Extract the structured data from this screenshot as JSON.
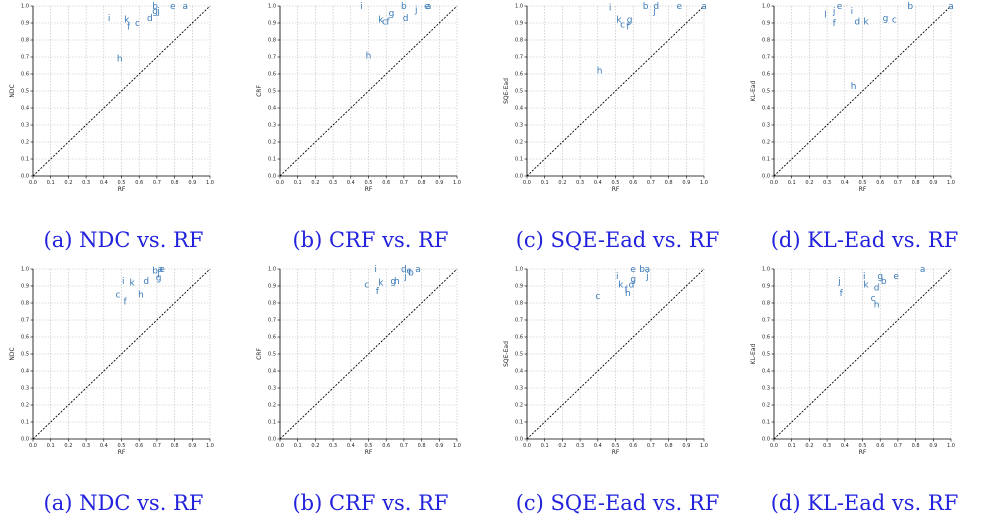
{
  "chart_data": [
    {
      "type": "scatter",
      "caption": "(a) NDC vs. RF",
      "xlabel": "RF",
      "ylabel": "NDC",
      "xlim": [
        0,
        1
      ],
      "ylim": [
        0,
        1
      ],
      "grid": true,
      "diagonal": true,
      "points": [
        {
          "label": "a",
          "x": 0.86,
          "y": 1.0
        },
        {
          "label": "e",
          "x": 0.79,
          "y": 1.0
        },
        {
          "label": "b",
          "x": 0.69,
          "y": 1.0
        },
        {
          "label": "j",
          "x": 0.71,
          "y": 0.97
        },
        {
          "label": "g",
          "x": 0.69,
          "y": 0.97
        },
        {
          "label": "d",
          "x": 0.66,
          "y": 0.93
        },
        {
          "label": "i",
          "x": 0.43,
          "y": 0.93
        },
        {
          "label": "k",
          "x": 0.53,
          "y": 0.92
        },
        {
          "label": "c",
          "x": 0.59,
          "y": 0.9
        },
        {
          "label": "f",
          "x": 0.54,
          "y": 0.88
        },
        {
          "label": "h",
          "x": 0.49,
          "y": 0.69
        }
      ]
    },
    {
      "type": "scatter",
      "caption": "(b) CRF vs. RF",
      "xlabel": "RF",
      "ylabel": "CRF",
      "xlim": [
        0,
        1
      ],
      "ylim": [
        0,
        1
      ],
      "grid": true,
      "diagonal": true,
      "points": [
        {
          "label": "e",
          "x": 0.83,
          "y": 1.0
        },
        {
          "label": "a",
          "x": 0.84,
          "y": 1.0
        },
        {
          "label": "b",
          "x": 0.7,
          "y": 1.0
        },
        {
          "label": "j",
          "x": 0.77,
          "y": 0.98
        },
        {
          "label": "i",
          "x": 0.46,
          "y": 1.0
        },
        {
          "label": "g",
          "x": 0.63,
          "y": 0.96
        },
        {
          "label": "d",
          "x": 0.71,
          "y": 0.93
        },
        {
          "label": "k",
          "x": 0.57,
          "y": 0.92
        },
        {
          "label": "c",
          "x": 0.59,
          "y": 0.91
        },
        {
          "label": "f",
          "x": 0.61,
          "y": 0.91
        },
        {
          "label": "h",
          "x": 0.5,
          "y": 0.71
        }
      ]
    },
    {
      "type": "scatter",
      "caption": "(c) SQE-Ead vs. RF",
      "xlabel": "RF",
      "ylabel": "SQE-Ead",
      "xlim": [
        0,
        1
      ],
      "ylim": [
        0,
        1
      ],
      "grid": true,
      "diagonal": true,
      "points": [
        {
          "label": "a",
          "x": 1.0,
          "y": 1.0
        },
        {
          "label": "e",
          "x": 0.86,
          "y": 1.0
        },
        {
          "label": "b",
          "x": 0.67,
          "y": 1.0
        },
        {
          "label": "d",
          "x": 0.73,
          "y": 1.0
        },
        {
          "label": "i",
          "x": 0.47,
          "y": 0.99
        },
        {
          "label": "j",
          "x": 0.72,
          "y": 0.97
        },
        {
          "label": "k",
          "x": 0.52,
          "y": 0.92
        },
        {
          "label": "g",
          "x": 0.58,
          "y": 0.92
        },
        {
          "label": "c",
          "x": 0.54,
          "y": 0.89
        },
        {
          "label": "f",
          "x": 0.57,
          "y": 0.88
        },
        {
          "label": "h",
          "x": 0.41,
          "y": 0.62
        }
      ]
    },
    {
      "type": "scatter",
      "caption": "(d) KL-Ead vs. RF",
      "xlabel": "RF",
      "ylabel": "KL-Ead",
      "xlim": [
        0,
        1
      ],
      "ylim": [
        0,
        1
      ],
      "grid": true,
      "diagonal": true,
      "points": [
        {
          "label": "a",
          "x": 1.0,
          "y": 1.0
        },
        {
          "label": "b",
          "x": 0.77,
          "y": 1.0
        },
        {
          "label": "e",
          "x": 0.37,
          "y": 1.0
        },
        {
          "label": "j",
          "x": 0.34,
          "y": 0.97
        },
        {
          "label": "i",
          "x": 0.44,
          "y": 0.97
        },
        {
          "label": "l",
          "x": 0.29,
          "y": 0.95
        },
        {
          "label": "g",
          "x": 0.63,
          "y": 0.93
        },
        {
          "label": "c",
          "x": 0.68,
          "y": 0.92
        },
        {
          "label": "d",
          "x": 0.47,
          "y": 0.91
        },
        {
          "label": "k",
          "x": 0.52,
          "y": 0.91
        },
        {
          "label": "f",
          "x": 0.34,
          "y": 0.9
        },
        {
          "label": "h",
          "x": 0.45,
          "y": 0.53
        }
      ]
    },
    {
      "type": "scatter",
      "caption": "(a) NDC vs. RF",
      "xlabel": "RF",
      "ylabel": "NDC",
      "xlim": [
        0,
        1
      ],
      "ylim": [
        0,
        1
      ],
      "grid": true,
      "diagonal": true,
      "points": [
        {
          "label": "a",
          "x": 0.72,
          "y": 1.0
        },
        {
          "label": "e",
          "x": 0.73,
          "y": 1.0
        },
        {
          "label": "b",
          "x": 0.69,
          "y": 0.99
        },
        {
          "label": "j",
          "x": 0.71,
          "y": 0.98
        },
        {
          "label": "g",
          "x": 0.71,
          "y": 0.95
        },
        {
          "label": "d",
          "x": 0.64,
          "y": 0.93
        },
        {
          "label": "i",
          "x": 0.51,
          "y": 0.93
        },
        {
          "label": "k",
          "x": 0.56,
          "y": 0.92
        },
        {
          "label": "c",
          "x": 0.48,
          "y": 0.85
        },
        {
          "label": "h",
          "x": 0.61,
          "y": 0.85
        },
        {
          "label": "f",
          "x": 0.52,
          "y": 0.81
        }
      ]
    },
    {
      "type": "scatter",
      "caption": "(b) CRF vs. RF",
      "xlabel": "RF",
      "ylabel": "CRF",
      "xlim": [
        0,
        1
      ],
      "ylim": [
        0,
        1
      ],
      "grid": true,
      "diagonal": true,
      "points": [
        {
          "label": "i",
          "x": 0.54,
          "y": 1.0
        },
        {
          "label": "d",
          "x": 0.7,
          "y": 1.0
        },
        {
          "label": "a",
          "x": 0.78,
          "y": 1.0
        },
        {
          "label": "e",
          "x": 0.73,
          "y": 0.99
        },
        {
          "label": "b",
          "x": 0.74,
          "y": 0.98
        },
        {
          "label": "j",
          "x": 0.71,
          "y": 0.96
        },
        {
          "label": "g",
          "x": 0.64,
          "y": 0.93
        },
        {
          "label": "h",
          "x": 0.66,
          "y": 0.93
        },
        {
          "label": "k",
          "x": 0.57,
          "y": 0.92
        },
        {
          "label": "c",
          "x": 0.49,
          "y": 0.91
        },
        {
          "label": "f",
          "x": 0.55,
          "y": 0.87
        }
      ]
    },
    {
      "type": "scatter",
      "caption": "(c) SQE-Ead vs. RF",
      "xlabel": "RF",
      "ylabel": "SQE-Ead",
      "xlim": [
        0,
        1
      ],
      "ylim": [
        0,
        1
      ],
      "grid": true,
      "diagonal": true,
      "points": [
        {
          "label": "e",
          "x": 0.6,
          "y": 1.0
        },
        {
          "label": "b",
          "x": 0.65,
          "y": 1.0
        },
        {
          "label": "a",
          "x": 0.68,
          "y": 1.0
        },
        {
          "label": "j",
          "x": 0.68,
          "y": 0.96
        },
        {
          "label": "i",
          "x": 0.51,
          "y": 0.96
        },
        {
          "label": "g",
          "x": 0.6,
          "y": 0.94
        },
        {
          "label": "d",
          "x": 0.59,
          "y": 0.91
        },
        {
          "label": "k",
          "x": 0.53,
          "y": 0.91
        },
        {
          "label": "f",
          "x": 0.56,
          "y": 0.88
        },
        {
          "label": "h",
          "x": 0.57,
          "y": 0.86
        },
        {
          "label": "c",
          "x": 0.4,
          "y": 0.84
        }
      ]
    },
    {
      "type": "scatter",
      "caption": "(d) KL-Ead vs. RF",
      "xlabel": "RF",
      "ylabel": "KL-Ead",
      "xlim": [
        0,
        1
      ],
      "ylim": [
        0,
        1
      ],
      "grid": true,
      "diagonal": true,
      "points": [
        {
          "label": "a",
          "x": 0.84,
          "y": 1.0
        },
        {
          "label": "e",
          "x": 0.69,
          "y": 0.96
        },
        {
          "label": "g",
          "x": 0.6,
          "y": 0.96
        },
        {
          "label": "i",
          "x": 0.51,
          "y": 0.96
        },
        {
          "label": "b",
          "x": 0.62,
          "y": 0.93
        },
        {
          "label": "j",
          "x": 0.37,
          "y": 0.93
        },
        {
          "label": "k",
          "x": 0.52,
          "y": 0.91
        },
        {
          "label": "d",
          "x": 0.58,
          "y": 0.89
        },
        {
          "label": "f",
          "x": 0.38,
          "y": 0.86
        },
        {
          "label": "c",
          "x": 0.56,
          "y": 0.83
        },
        {
          "label": "h",
          "x": 0.58,
          "y": 0.79
        }
      ]
    }
  ]
}
